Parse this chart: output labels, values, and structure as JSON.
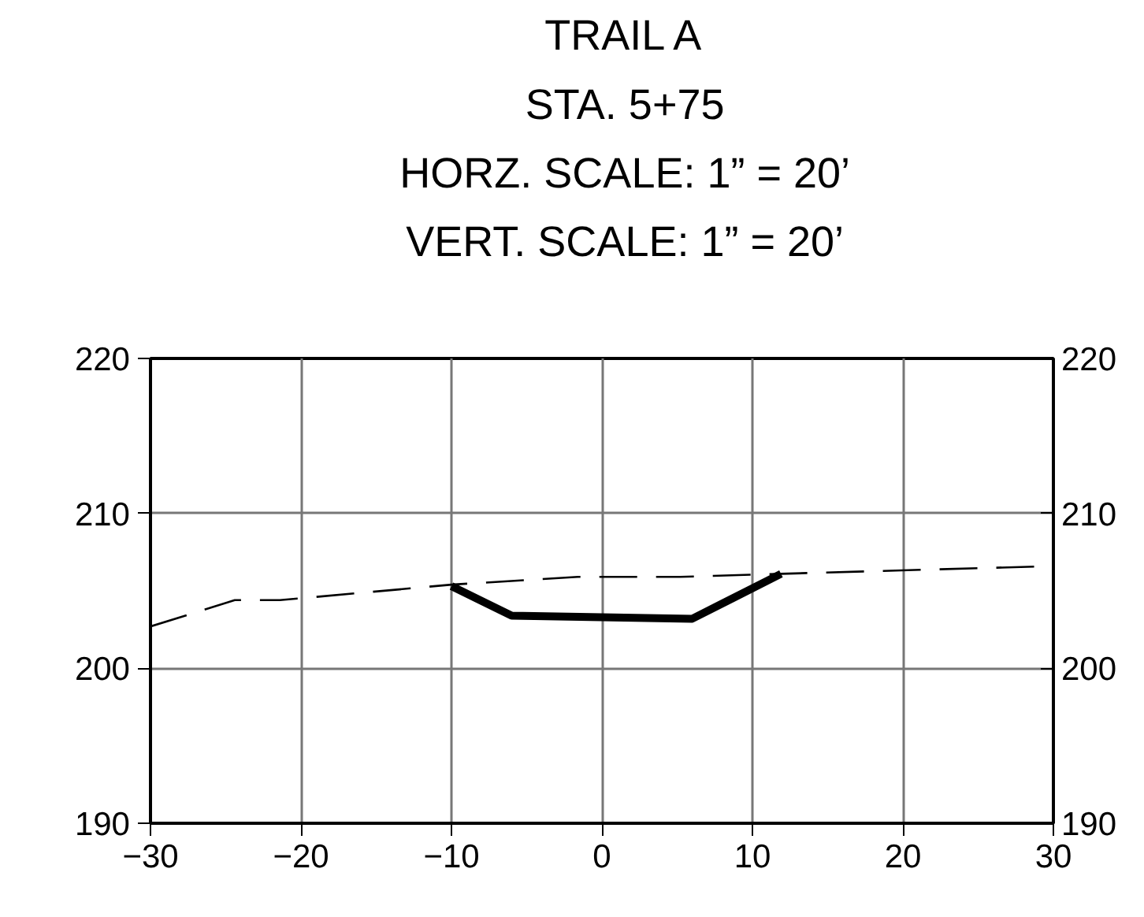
{
  "chart_data": {
    "type": "line",
    "title": "TRAIL A",
    "subtitle": "STA. 5+75\nHORZ. SCALE: 1” = 20’\nVERT. SCALE: 1” = 20’",
    "series": [
      {
        "x": [
          -30,
          -24.4,
          -21.4,
          -10,
          -1.6,
          5.2,
          11.9,
          30
        ],
        "values": [
          202.7,
          204.4,
          204.4,
          205.4,
          205.9,
          205.9,
          206.1,
          206.6
        ],
        "color": "#000000",
        "line_style": "dashed"
      },
      {
        "x": [
          -10,
          -6,
          0,
          6,
          11.9
        ],
        "values": [
          205.3,
          203.4,
          203.3,
          203.2,
          206.1
        ],
        "color": "#000000",
        "line_style": "solid"
      }
    ],
    "xlim": [
      -30,
      30
    ],
    "xticks": [
      -30,
      -20,
      -10,
      0,
      10,
      20,
      30
    ],
    "ylim": [
      190,
      220
    ],
    "yticks": [
      190,
      200,
      210,
      220
    ],
    "y2lim": [
      190,
      220
    ],
    "y2ticks": [
      190,
      200,
      210,
      220
    ],
    "grid": true,
    "marker": "none"
  }
}
